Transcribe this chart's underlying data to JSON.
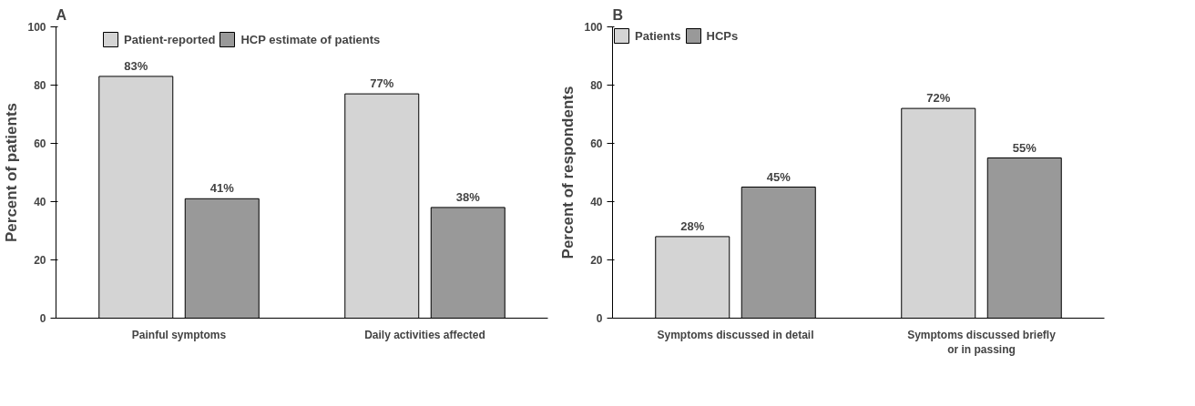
{
  "chart_data": [
    {
      "type": "bar",
      "title": "A",
      "ylabel": "Percent of patients",
      "categories": [
        "Painful symptoms",
        "Daily activities affected"
      ],
      "series": [
        {
          "name": "Patient-reported",
          "color": "#d4d4d4",
          "values": [
            83,
            77
          ],
          "value_labels": [
            "83%",
            "77%"
          ]
        },
        {
          "name": "HCP estimate of patients",
          "color": "#999999",
          "values": [
            41,
            38
          ],
          "value_labels": [
            "41%",
            "38%"
          ]
        }
      ],
      "ylim": [
        0,
        100
      ],
      "yticks": [
        0,
        20,
        40,
        60,
        80,
        100
      ],
      "grid": false,
      "legend": "top"
    },
    {
      "type": "bar",
      "title": "B",
      "ylabel": "Percent of respondents",
      "categories": [
        "Symptoms discussed in detail",
        "Symptoms discussed briefly\nor in passing"
      ],
      "series": [
        {
          "name": "Patients",
          "color": "#d4d4d4",
          "values": [
            28,
            72
          ],
          "value_labels": [
            "28%",
            "72%"
          ]
        },
        {
          "name": "HCPs",
          "color": "#999999",
          "values": [
            45,
            55
          ],
          "value_labels": [
            "45%",
            "55%"
          ]
        }
      ],
      "ylim": [
        0,
        100
      ],
      "yticks": [
        0,
        20,
        40,
        60,
        80,
        100
      ],
      "grid": false,
      "legend": "top left"
    }
  ]
}
